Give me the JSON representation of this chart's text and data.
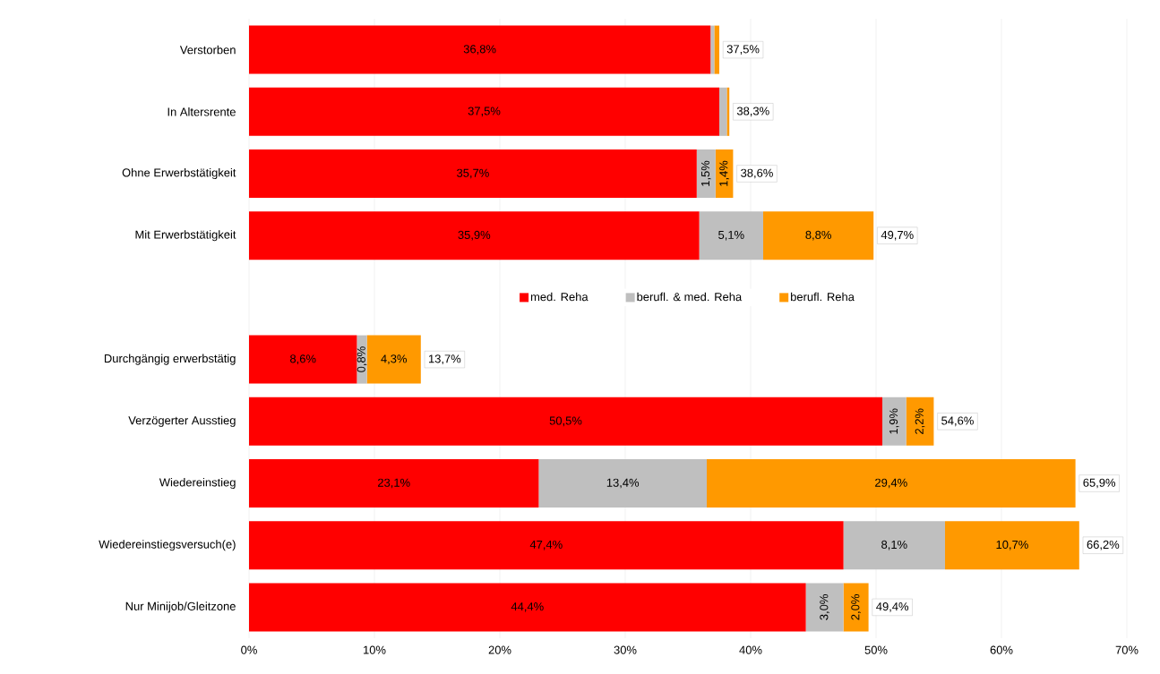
{
  "chart_data": {
    "type": "bar",
    "orientation": "horizontal",
    "stacked": true,
    "categories": [
      "Verstorben",
      "In Altersrente",
      "Ohne Erwerbstätigkeit",
      "Mit Erwerbstätigkeit",
      null,
      "Durchgängig erwerbstätig",
      "Verzögerter Ausstieg",
      "Wiedereinstieg",
      "Wiedereinstiegsversuch(e)",
      "Nur Minijob/Gleitzone"
    ],
    "series": [
      {
        "name": "med. Reha",
        "color": "#ff0000",
        "values": [
          36.8,
          37.5,
          35.7,
          35.9,
          null,
          8.6,
          50.5,
          23.1,
          47.4,
          44.4
        ],
        "value_labels": [
          "36,8%",
          "37,5%",
          "35,7%",
          "35,9%",
          null,
          "8,6%",
          "50,5%",
          "23,1%",
          "47,4%",
          "44,4%"
        ]
      },
      {
        "name": "berufl. & med. Reha",
        "color": "#bfbfbf",
        "values": [
          0.3,
          0.6,
          1.5,
          5.1,
          null,
          0.8,
          1.9,
          13.4,
          8.1,
          3.0
        ],
        "value_labels": [
          null,
          null,
          "1,5%",
          "5,1%",
          null,
          "0,8%",
          "1,9%",
          "13,4%",
          "8,1%",
          "3,0%"
        ]
      },
      {
        "name": "berufl. Reha",
        "color": "#ff9900",
        "values": [
          0.4,
          0.2,
          1.4,
          8.8,
          null,
          4.3,
          2.2,
          29.4,
          10.7,
          2.0
        ],
        "value_labels": [
          null,
          null,
          "1,4%",
          "8,8%",
          null,
          "4,3%",
          "2,2%",
          "29,4%",
          "10,7%",
          "2,0%"
        ]
      }
    ],
    "totals": [
      "37,5%",
      "38,3%",
      "38,6%",
      "49,7%",
      null,
      "13,7%",
      "54,6%",
      "65,9%",
      "66,2%",
      "49,4%"
    ],
    "xlim": [
      0,
      70
    ],
    "xticks": [
      {
        "value": 0,
        "label": "0%"
      },
      {
        "value": 10,
        "label": "10%"
      },
      {
        "value": 20,
        "label": "20%"
      },
      {
        "value": 30,
        "label": "30%"
      },
      {
        "value": 40,
        "label": "40%"
      },
      {
        "value": 50,
        "label": "50%"
      },
      {
        "value": 60,
        "label": "60%"
      },
      {
        "value": 70,
        "label": "70%"
      }
    ],
    "grid": "x",
    "legend": "center"
  }
}
